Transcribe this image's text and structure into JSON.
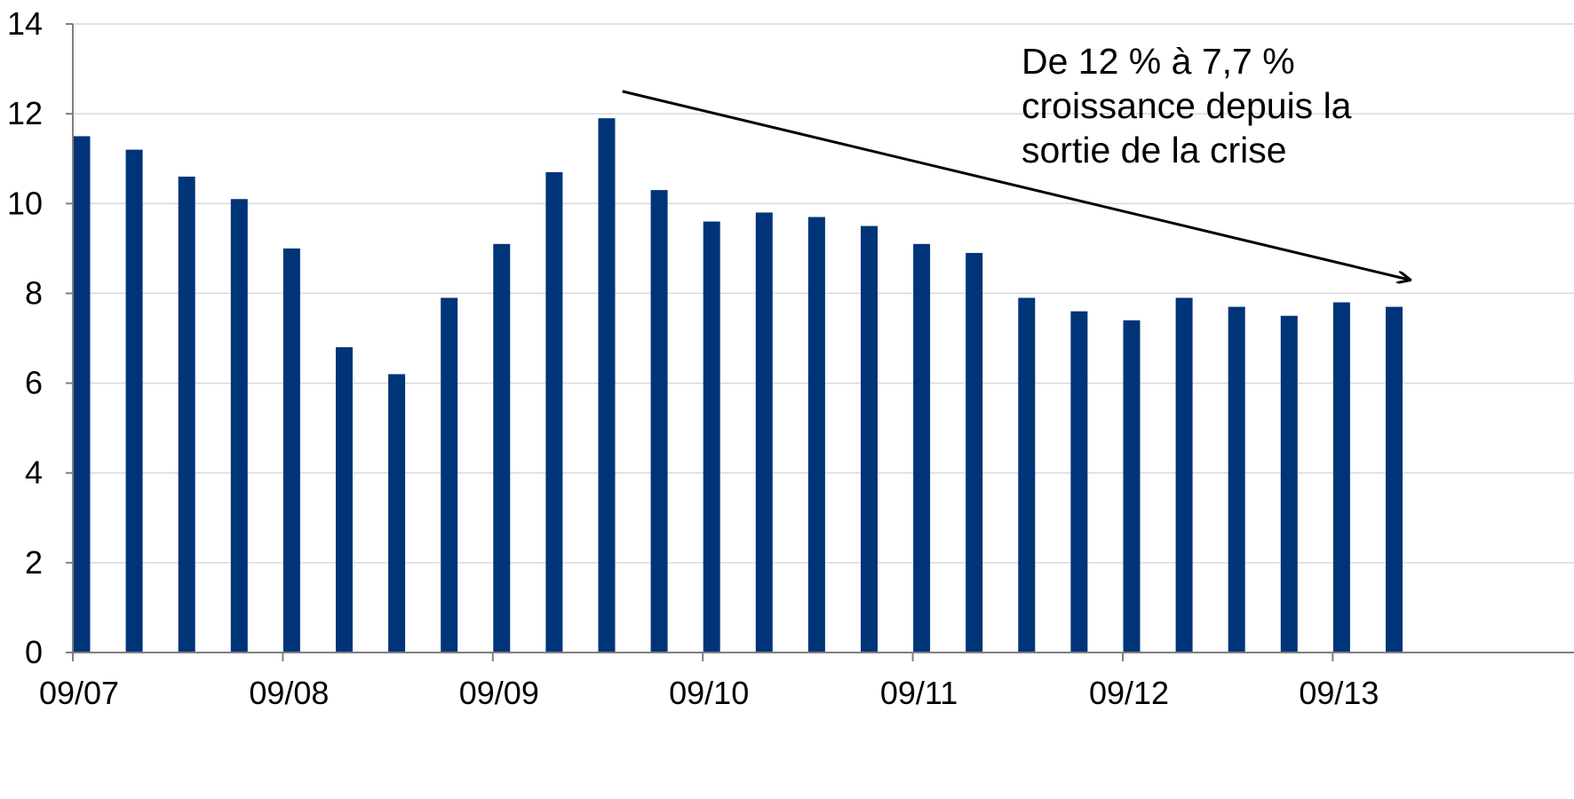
{
  "chart_data": {
    "type": "bar",
    "title": "",
    "xlabel": "",
    "ylabel": "",
    "ylim": [
      0,
      14
    ],
    "yticks": [
      "0",
      "2",
      "4",
      "6",
      "8",
      "10",
      "12",
      "14"
    ],
    "x_tick_labels": [
      "09/07",
      "09/08",
      "09/09",
      "09/10",
      "09/11",
      "09/12",
      "09/13"
    ],
    "values": [
      11.5,
      11.2,
      10.6,
      10.1,
      9.0,
      6.8,
      6.2,
      7.9,
      9.1,
      10.7,
      11.9,
      10.3,
      9.6,
      9.8,
      9.7,
      9.5,
      9.1,
      8.9,
      7.9,
      7.6,
      7.4,
      7.9,
      7.7,
      7.5,
      7.8,
      7.7
    ],
    "grid": true,
    "bar_color": "#003478",
    "grid_color": "#d9d9d9",
    "annotation": {
      "lines": [
        "De 12 % à 7,7 %",
        "croissance depuis la",
        "sortie de la crise"
      ],
      "arrow": {
        "from": {
          "x_index": 10.3,
          "y": 12.5
        },
        "to": {
          "x_index": 25.3,
          "y": 8.3
        }
      }
    }
  }
}
